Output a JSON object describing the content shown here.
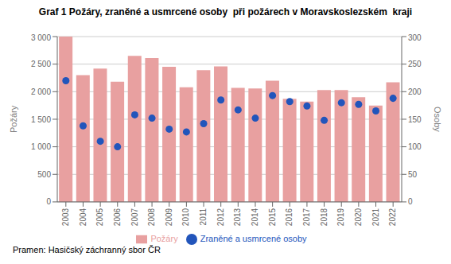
{
  "chart_data": {
    "type": "bar",
    "title": "Graf 1 Požáry, zraněné a usmrcené osoby  při požárech v Moravskoslezském  kraji",
    "categories": [
      "2003",
      "2004",
      "2005",
      "2006",
      "2007",
      "2008",
      "2009",
      "2010",
      "2011",
      "2012",
      "2013",
      "2014",
      "2015",
      "2016",
      "2017",
      "2018",
      "2019",
      "2020",
      "2021",
      "2022"
    ],
    "series": [
      {
        "name": "Požáry",
        "type": "bar",
        "color": "#e8a0a0",
        "values": [
          3000,
          2300,
          2420,
          2180,
          2650,
          2610,
          2450,
          2080,
          2390,
          2460,
          2070,
          2060,
          2200,
          1870,
          1820,
          2030,
          2030,
          1900,
          1750,
          2170
        ]
      },
      {
        "name": "Zraněné a usmrcené osoby",
        "type": "scatter",
        "axis": "y2",
        "color": "#2255bb",
        "marker": "circle",
        "values": [
          220,
          138,
          110,
          100,
          158,
          152,
          132,
          127,
          142,
          185,
          167,
          152,
          193,
          182,
          174,
          148,
          180,
          177,
          165,
          188
        ]
      }
    ],
    "ylabel": "Požáry",
    "y2label": "Osoby",
    "ylim": [
      0,
      3000
    ],
    "yticks": [
      0,
      500,
      {
        "value": 1000,
        "label": "1 000"
      },
      {
        "value": 1500,
        "label": "1 500"
      },
      {
        "value": 2000,
        "label": "2 000"
      },
      {
        "value": 2500,
        "label": "2 500"
      },
      {
        "value": 3000,
        "label": "3 000"
      }
    ],
    "y2lim": [
      0,
      300
    ],
    "y2ticks": [
      0,
      50,
      100,
      150,
      200,
      250,
      300
    ],
    "grid": true,
    "legend": "bottom",
    "annotations": [
      "Pramen: Hasičský záchranný sbor ČR"
    ]
  }
}
